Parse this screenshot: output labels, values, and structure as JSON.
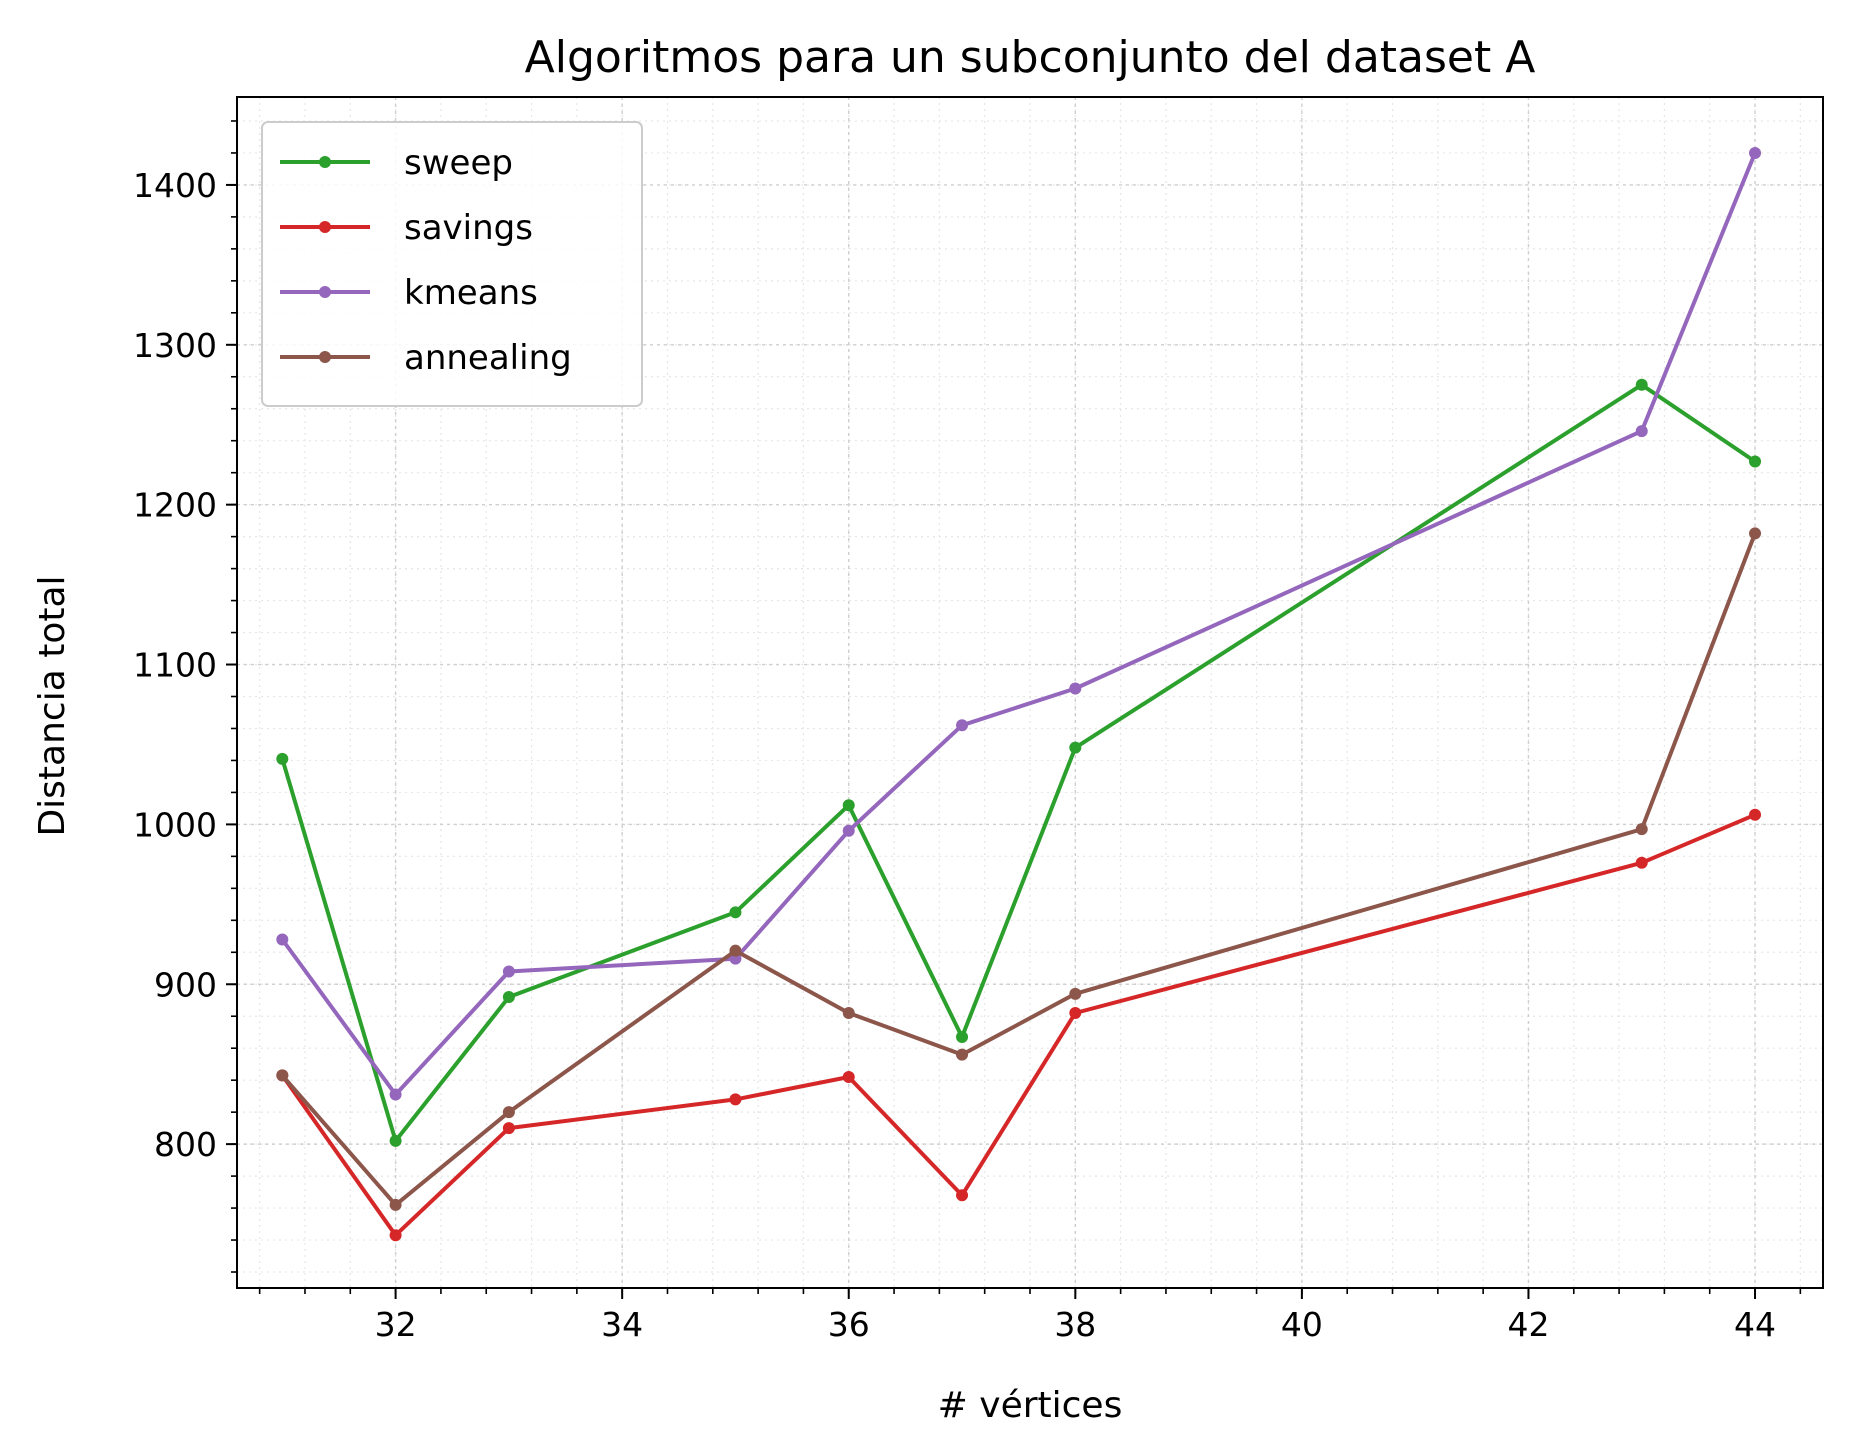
{
  "chart_data": {
    "type": "line",
    "title": "Algoritmos para un subconjunto del dataset A",
    "xlabel": "# vértices",
    "ylabel": "Distancia total",
    "x": [
      31,
      32,
      33,
      35,
      36,
      37,
      38,
      43,
      44
    ],
    "xlim": [
      30.6,
      44.6
    ],
    "ylim": [
      710,
      1455
    ],
    "xticks": [
      32,
      34,
      36,
      38,
      40,
      42,
      44
    ],
    "yticks": [
      800,
      900,
      1000,
      1100,
      1200,
      1300,
      1400
    ],
    "grid": true,
    "legend_position": "top-left",
    "series": [
      {
        "name": "sweep",
        "color": "#2ca02c",
        "values": [
          1041,
          802,
          892,
          945,
          1012,
          867,
          1048,
          1275,
          1227
        ]
      },
      {
        "name": "savings",
        "color": "#d62728",
        "values": [
          843,
          743,
          810,
          828,
          842,
          768,
          882,
          976,
          1006
        ]
      },
      {
        "name": "kmeans",
        "color": "#9467bd",
        "values": [
          928,
          831,
          908,
          916,
          996,
          1062,
          1085,
          1246,
          1420
        ]
      },
      {
        "name": "annealing",
        "color": "#8c564b",
        "values": [
          843,
          762,
          820,
          921,
          882,
          856,
          894,
          997,
          1182
        ]
      }
    ]
  }
}
